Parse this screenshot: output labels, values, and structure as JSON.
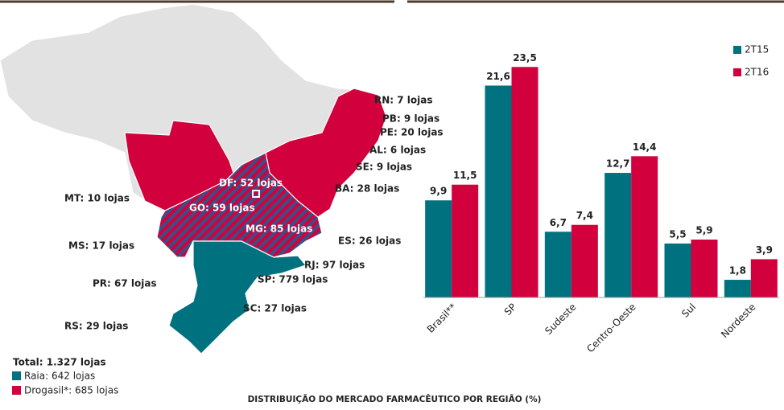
{
  "map": {
    "labels": [
      "RN: 7 lojas",
      "PB: 9 lojas",
      "PE: 20 lojas",
      "AL: 6 lojas",
      "SE: 9 lojas",
      "BA: 28 lojas",
      "DF: 52 lojas",
      "GO: 59 lojas",
      "MG: 85 lojas",
      "ES: 26 lojas",
      "MT: 10 lojas",
      "MS: 17 lojas",
      "RJ: 97 lojas",
      "SP: 779 lojas",
      "PR: 67 lojas",
      "SC: 27 lojas",
      "RS: 29 lojas"
    ],
    "legend": {
      "total": "Total: 1.327 lojas",
      "raia": "Raia: 642 lojas",
      "drogasil": "Drogasil*: 685 lojas"
    }
  },
  "chart_data": {
    "type": "bar",
    "title": "DISTRIBUIÇÃO DO MERCADO FARMACÊUTICO POR REGIÃO (%)",
    "categories": [
      "Brasil**",
      "SP",
      "Sudeste",
      "Centro-Oeste",
      "Sul",
      "Nordeste"
    ],
    "series": [
      {
        "name": "2T15",
        "color": "#00717f",
        "values": [
          9.9,
          21.6,
          6.7,
          12.7,
          5.5,
          1.8
        ],
        "value_labels": [
          "9,9",
          "21,6",
          "6,7",
          "12,7",
          "5,5",
          "1,8"
        ]
      },
      {
        "name": "2T16",
        "color": "#d2003c",
        "values": [
          11.5,
          23.5,
          7.4,
          14.4,
          5.9,
          3.9
        ],
        "value_labels": [
          "11,5",
          "23,5",
          "7,4",
          "14,4",
          "5,9",
          "3,9"
        ]
      }
    ],
    "ylim": [
      0,
      25
    ],
    "legend": "upper right"
  }
}
